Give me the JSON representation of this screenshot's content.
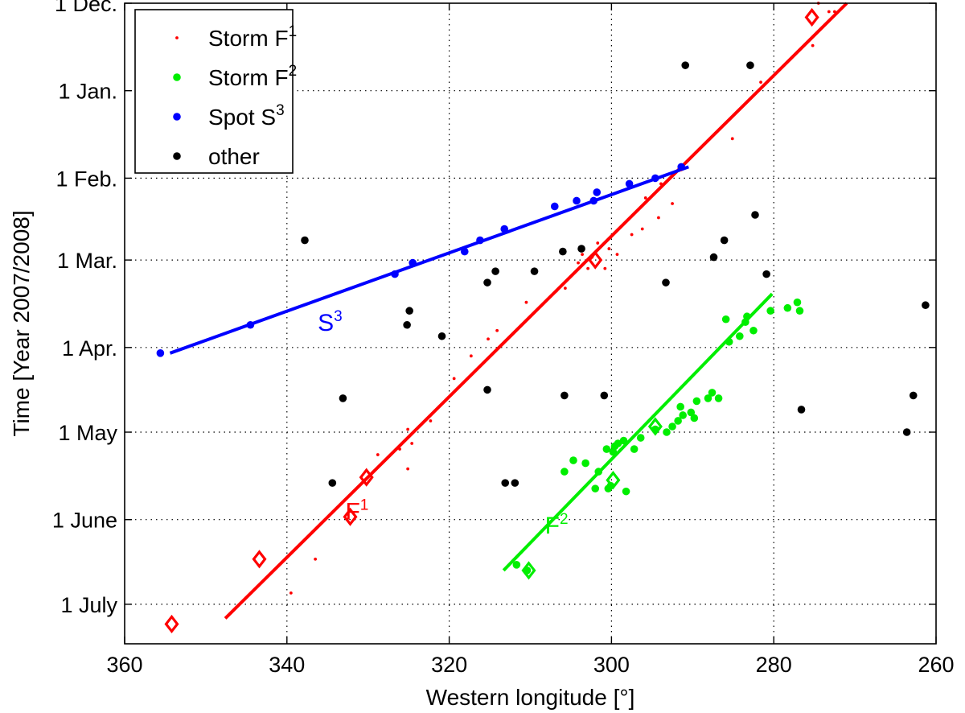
{
  "chart_data": {
    "type": "scatter",
    "xlabel": "Western longitude [°]",
    "ylabel": "Time [Year 2007/2008]",
    "xlim": [
      360,
      260
    ],
    "x_reversed": true,
    "x_ticks": [
      360,
      340,
      320,
      300,
      280,
      260
    ],
    "ylim_days": [
      0,
      227
    ],
    "y_reversed": true,
    "y_ticks": [
      {
        "label": "1 Dec.",
        "day": 0
      },
      {
        "label": "1 Jan.",
        "day": 31
      },
      {
        "label": "1 Feb.",
        "day": 62
      },
      {
        "label": "1 Mar.",
        "day": 91
      },
      {
        "label": "1 Apr.",
        "day": 122
      },
      {
        "label": "1 May",
        "day": 152
      },
      {
        "label": "1 June",
        "day": 183
      },
      {
        "label": "1 July",
        "day": 213
      }
    ],
    "grid": true,
    "legend_position": "top-left",
    "legend": [
      {
        "label": "Storm F",
        "sup": "1",
        "color": "#ff0000",
        "marker": "small-dot"
      },
      {
        "label": "Storm F",
        "sup": "2",
        "color": "#00ee00",
        "marker": "dot"
      },
      {
        "label": "Spot S",
        "sup": "3",
        "color": "#0000ff",
        "marker": "dot"
      },
      {
        "label": "other",
        "sup": "",
        "color": "#000000",
        "marker": "dot"
      }
    ],
    "series": [
      {
        "name": "Storm F1",
        "color": "#ff0000",
        "marker": "small-dot",
        "points": [
          [
            274.5,
            0
          ],
          [
            273.2,
            3
          ],
          [
            272.5,
            3
          ],
          [
            275.2,
            15
          ],
          [
            281.6,
            28
          ],
          [
            285.1,
            48
          ],
          [
            291.4,
            59
          ],
          [
            293.9,
            64
          ],
          [
            295.8,
            69
          ],
          [
            292.5,
            71
          ],
          [
            294.2,
            76
          ],
          [
            296.2,
            80
          ],
          [
            297.5,
            82
          ],
          [
            301.7,
            85
          ],
          [
            300.3,
            87
          ],
          [
            303.6,
            89
          ],
          [
            299.3,
            89
          ],
          [
            302.4,
            90
          ],
          [
            304.1,
            92
          ],
          [
            302.9,
            94
          ],
          [
            300.8,
            94
          ],
          [
            305.7,
            101
          ],
          [
            306.8,
            102
          ],
          [
            310.5,
            106
          ],
          [
            314.1,
            116
          ],
          [
            315.2,
            119
          ],
          [
            317.3,
            125
          ],
          [
            319.4,
            133
          ],
          [
            322.3,
            148
          ],
          [
            325.1,
            151
          ],
          [
            324.6,
            156
          ],
          [
            326.1,
            158
          ],
          [
            328.8,
            160
          ],
          [
            325.1,
            165
          ],
          [
            336.5,
            197
          ],
          [
            339.5,
            209
          ]
        ]
      },
      {
        "name": "Storm F2",
        "color": "#00ee00",
        "marker": "dot",
        "points": [
          [
            277.1,
            106
          ],
          [
            276.8,
            109
          ],
          [
            278.3,
            108
          ],
          [
            280.4,
            109
          ],
          [
            283.3,
            111
          ],
          [
            283.5,
            113
          ],
          [
            285.9,
            112
          ],
          [
            282.5,
            116
          ],
          [
            284.2,
            118
          ],
          [
            285.5,
            120
          ],
          [
            287.6,
            138
          ],
          [
            288.1,
            140
          ],
          [
            286.8,
            140
          ],
          [
            289.5,
            141
          ],
          [
            291.5,
            143
          ],
          [
            290.2,
            145
          ],
          [
            291.2,
            146
          ],
          [
            289.8,
            147
          ],
          [
            291.8,
            148
          ],
          [
            292.5,
            150
          ],
          [
            293.2,
            152
          ],
          [
            294.6,
            151
          ],
          [
            296.4,
            154
          ],
          [
            298.5,
            155
          ],
          [
            299.2,
            156
          ],
          [
            299.6,
            157
          ],
          [
            297.2,
            158
          ],
          [
            299.8,
            159
          ],
          [
            300.6,
            158
          ],
          [
            304.7,
            162
          ],
          [
            303.2,
            163
          ],
          [
            305.8,
            166
          ],
          [
            301.6,
            166
          ],
          [
            300.1,
            171
          ],
          [
            302.0,
            172
          ],
          [
            298.2,
            173
          ],
          [
            300.4,
            172
          ],
          [
            310.4,
            201
          ],
          [
            311.7,
            199
          ]
        ]
      },
      {
        "name": "Spot S3",
        "color": "#0000ff",
        "marker": "dot",
        "points": [
          [
            291.4,
            58
          ],
          [
            294.6,
            62
          ],
          [
            297.8,
            64
          ],
          [
            301.8,
            67
          ],
          [
            304.3,
            70
          ],
          [
            302.2,
            70
          ],
          [
            307.0,
            72
          ],
          [
            313.2,
            80
          ],
          [
            316.2,
            84
          ],
          [
            318.1,
            88
          ],
          [
            324.5,
            92
          ],
          [
            326.7,
            96
          ],
          [
            344.5,
            114
          ],
          [
            355.6,
            124
          ]
        ]
      },
      {
        "name": "other",
        "color": "#000000",
        "marker": "dot",
        "points": [
          [
            290.9,
            22
          ],
          [
            282.9,
            22
          ],
          [
            282.3,
            75
          ],
          [
            286.1,
            84
          ],
          [
            303.7,
            87
          ],
          [
            306.0,
            88
          ],
          [
            287.4,
            90
          ],
          [
            309.5,
            95
          ],
          [
            314.3,
            95
          ],
          [
            280.9,
            96
          ],
          [
            315.3,
            99
          ],
          [
            293.3,
            99
          ],
          [
            324.9,
            109
          ],
          [
            325.2,
            114
          ],
          [
            320.9,
            118
          ],
          [
            337.8,
            84
          ],
          [
            333.1,
            140
          ],
          [
            315.3,
            137
          ],
          [
            305.8,
            139
          ],
          [
            300.9,
            139
          ],
          [
            261.3,
            107
          ],
          [
            262.8,
            139
          ],
          [
            276.6,
            144
          ],
          [
            263.6,
            152
          ],
          [
            334.4,
            170
          ],
          [
            313.1,
            170
          ],
          [
            311.9,
            170
          ]
        ]
      }
    ],
    "diamond_series": [
      {
        "name": "Storm F1",
        "color": "#ff0000",
        "points": [
          [
            275.3,
            5
          ],
          [
            302.0,
            91
          ],
          [
            330.2,
            168
          ],
          [
            332.2,
            182
          ],
          [
            343.4,
            197
          ],
          [
            354.2,
            220
          ]
        ]
      },
      {
        "name": "Storm F2",
        "color": "#00ee00",
        "points": [
          [
            294.6,
            150
          ],
          [
            299.8,
            169
          ],
          [
            310.2,
            201
          ]
        ]
      }
    ],
    "fit_lines": [
      {
        "label": "F",
        "sup": "1",
        "color": "#ff0000",
        "from": [
          347.6,
          218
        ],
        "to": [
          271.0,
          0
        ],
        "label_at": [
          332.8,
          183
        ]
      },
      {
        "label": "F",
        "sup": "2",
        "color": "#00ee00",
        "from": [
          313.3,
          201
        ],
        "to": [
          280.2,
          103
        ],
        "label_at": [
          308.2,
          188
        ]
      },
      {
        "label": "S",
        "sup": "3",
        "color": "#0000ff",
        "from": [
          354.4,
          124
        ],
        "to": [
          290.5,
          58
        ],
        "label_at": [
          336.2,
          116
        ]
      }
    ]
  }
}
